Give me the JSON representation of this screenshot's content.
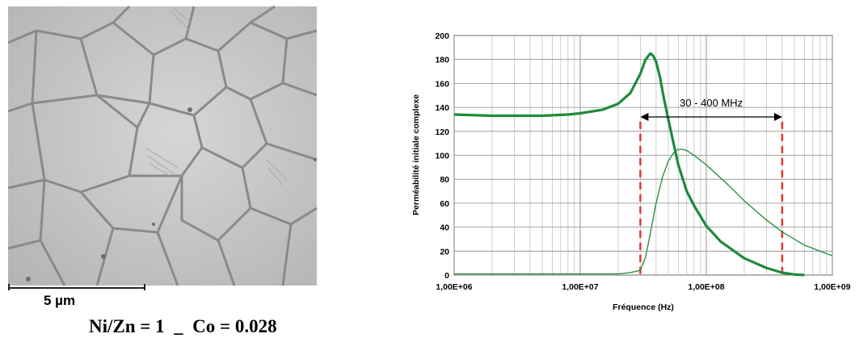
{
  "micrograph": {
    "scale_label": "5 µm",
    "composition": "Ni/Zn = 1  _  Co = 0.028"
  },
  "chart_data": {
    "type": "line",
    "title": "",
    "xlabel": "Fréquence (Hz)",
    "ylabel": "Perméabilité initiale complexe",
    "xscale": "log",
    "xlim": [
      1000000,
      1000000000
    ],
    "ylim": [
      0,
      200
    ],
    "x_ticks": [
      "1,00E+06",
      "1,00E+07",
      "1,00E+08",
      "1,00E+09"
    ],
    "y_ticks": [
      0,
      20,
      40,
      60,
      80,
      100,
      120,
      140,
      160,
      180,
      200
    ],
    "grid": true,
    "legend": "none",
    "series": [
      {
        "color": "#1e8a3c",
        "style": "thick",
        "x": [
          1000000,
          2000000,
          5000000,
          8000000,
          10000000,
          15000000,
          20000000,
          25000000,
          30000000,
          33000000,
          36000000,
          38000000,
          40000000,
          43000000,
          46000000,
          50000000,
          55000000,
          60000000,
          70000000,
          80000000,
          100000000,
          130000000,
          200000000,
          300000000,
          400000000,
          500000000,
          600000000
        ],
        "y": [
          134,
          133,
          133,
          134,
          135,
          138,
          143,
          152,
          168,
          180,
          185,
          183,
          178,
          165,
          148,
          130,
          110,
          92,
          70,
          58,
          41,
          28,
          14,
          6,
          2,
          0.5,
          0
        ]
      },
      {
        "color": "#1e8a3c",
        "style": "thin",
        "x": [
          1000000,
          5000000,
          10000000,
          20000000,
          25000000,
          30000000,
          33000000,
          36000000,
          40000000,
          45000000,
          50000000,
          55000000,
          60000000,
          65000000,
          70000000,
          80000000,
          100000000,
          150000000,
          200000000,
          300000000,
          400000000,
          600000000,
          1000000000
        ],
        "y": [
          1,
          1,
          1,
          1,
          2,
          4,
          15,
          35,
          60,
          82,
          95,
          102,
          105,
          105,
          104,
          100,
          92,
          75,
          62,
          46,
          36,
          25,
          16
        ]
      }
    ],
    "annotations": [
      {
        "text": "30 - 400 MHz",
        "type": "double-arrow",
        "x_from": 30000000,
        "x_to": 400000000,
        "y": 132
      }
    ],
    "reference_lines": [
      {
        "x": 30000000,
        "color": "#e0392b",
        "style": "dashed"
      },
      {
        "x": 400000000,
        "color": "#e0392b",
        "style": "dashed"
      }
    ]
  }
}
